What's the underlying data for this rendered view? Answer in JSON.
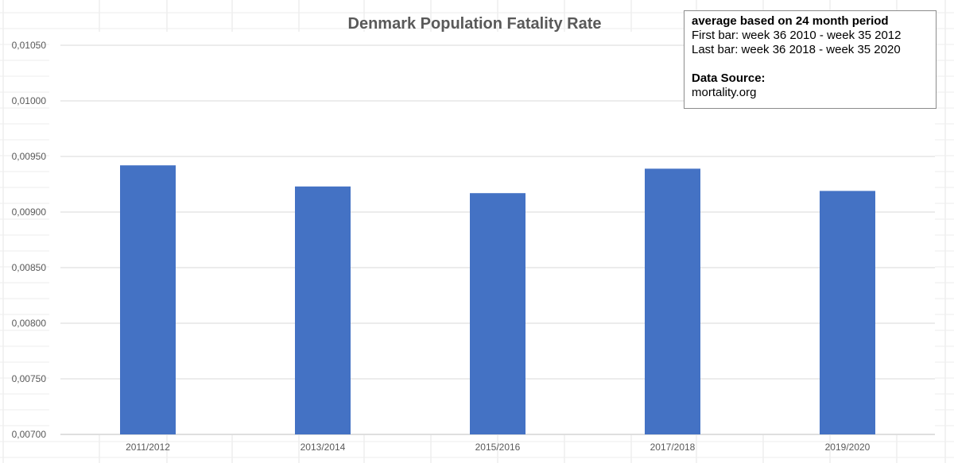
{
  "chart_data": {
    "type": "bar",
    "title": "Denmark Population Fatality Rate",
    "categories": [
      "2011/2012",
      "2013/2014",
      "2015/2016",
      "2017/2018",
      "2019/2020"
    ],
    "values": [
      0.00942,
      0.00923,
      0.00917,
      0.00939,
      0.00919
    ],
    "yticks": [
      "0,00700",
      "0,00750",
      "0,00800",
      "0,00850",
      "0,00900",
      "0,00950",
      "0,01000",
      "0,01050"
    ],
    "ylim": [
      0.007,
      0.0105
    ],
    "xlabel": "",
    "ylabel": "",
    "grid": true,
    "bar_color": "#4472C4"
  },
  "annotation": {
    "heading": "average based on 24 month period",
    "line1": "First bar: week 36 2010  - week 35 2012",
    "line2": "Last bar: week 36 2018  - week 35 2020",
    "source_label": "Data Source:",
    "source_value": "mortality.org"
  }
}
